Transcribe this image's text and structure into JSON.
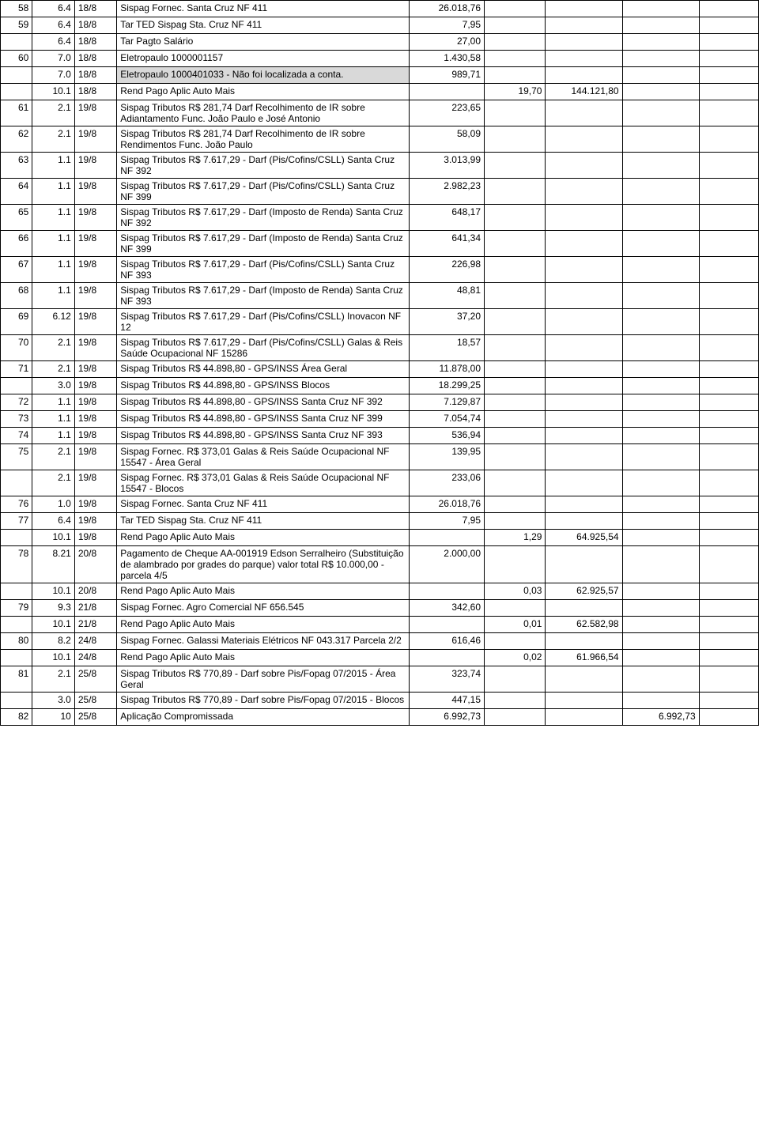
{
  "rows": [
    {
      "a": "58",
      "b": "6.4",
      "c": "18/8",
      "d": "Sispag Fornec. Santa Cruz NF 411",
      "e": "26.018,76",
      "f": "",
      "g": "",
      "h": "",
      "i": ""
    },
    {
      "a": "59",
      "b": "6.4",
      "c": "18/8",
      "d": "Tar TED Sispag Sta. Cruz NF 411",
      "e": "7,95",
      "f": "",
      "g": "",
      "h": "",
      "i": ""
    },
    {
      "a": "",
      "b": "6.4",
      "c": "18/8",
      "d": "Tar Pagto Salário",
      "e": "27,00",
      "f": "",
      "g": "",
      "h": "",
      "i": ""
    },
    {
      "a": "60",
      "b": "7.0",
      "c": "18/8",
      "d": "Eletropaulo 1000001157",
      "e": "1.430,58",
      "f": "",
      "g": "",
      "h": "",
      "i": ""
    },
    {
      "a": "",
      "b": "7.0",
      "c": "18/8",
      "d": "Eletropaulo 1000401033 - Não foi localizada a conta.",
      "e": "989,71",
      "f": "",
      "g": "",
      "h": "",
      "i": "",
      "highlight": true
    },
    {
      "a": "",
      "b": "10.1",
      "c": "18/8",
      "d": "Rend Pago Aplic Auto Mais",
      "e": "",
      "f": "19,70",
      "g": "144.121,80",
      "h": "",
      "i": ""
    },
    {
      "a": "61",
      "b": "2.1",
      "c": "19/8",
      "d": "Sispag Tributos R$ 281,74 Darf Recolhimento de IR sobre Adiantamento Func. João Paulo e José Antonio",
      "e": "223,65",
      "f": "",
      "g": "",
      "h": "",
      "i": ""
    },
    {
      "a": "62",
      "b": "2.1",
      "c": "19/8",
      "d": "Sispag Tributos R$ 281,74 Darf Recolhimento de IR sobre Rendimentos Func. João Paulo",
      "e": "58,09",
      "f": "",
      "g": "",
      "h": "",
      "i": ""
    },
    {
      "a": "63",
      "b": "1.1",
      "c": "19/8",
      "d": "Sispag Tributos R$ 7.617,29 - Darf (Pis/Cofins/CSLL) Santa Cruz NF 392",
      "e": "3.013,99",
      "f": "",
      "g": "",
      "h": "",
      "i": ""
    },
    {
      "a": "64",
      "b": "1.1",
      "c": "19/8",
      "d": "Sispag Tributos R$ 7.617,29 - Darf (Pis/Cofins/CSLL) Santa Cruz NF 399",
      "e": "2.982,23",
      "f": "",
      "g": "",
      "h": "",
      "i": ""
    },
    {
      "a": "65",
      "b": "1.1",
      "c": "19/8",
      "d": "Sispag Tributos R$ 7.617,29 - Darf (Imposto de Renda) Santa Cruz NF 392",
      "e": "648,17",
      "f": "",
      "g": "",
      "h": "",
      "i": ""
    },
    {
      "a": "66",
      "b": "1.1",
      "c": "19/8",
      "d": "Sispag Tributos R$ 7.617,29 - Darf (Imposto de Renda) Santa Cruz NF 399",
      "e": "641,34",
      "f": "",
      "g": "",
      "h": "",
      "i": ""
    },
    {
      "a": "67",
      "b": "1.1",
      "c": "19/8",
      "d": "Sispag Tributos R$ 7.617,29 - Darf (Pis/Cofins/CSLL) Santa Cruz NF 393",
      "e": "226,98",
      "f": "",
      "g": "",
      "h": "",
      "i": ""
    },
    {
      "a": "68",
      "b": "1.1",
      "c": "19/8",
      "d": "Sispag Tributos R$ 7.617,29 - Darf (Imposto de Renda) Santa Cruz NF 393",
      "e": "48,81",
      "f": "",
      "g": "",
      "h": "",
      "i": ""
    },
    {
      "a": "69",
      "b": "6.12",
      "c": "19/8",
      "d": "Sispag Tributos R$ 7.617,29 - Darf (Pis/Cofins/CSLL) Inovacon NF 12",
      "e": "37,20",
      "f": "",
      "g": "",
      "h": "",
      "i": ""
    },
    {
      "a": "70",
      "b": "2.1",
      "c": "19/8",
      "d": "Sispag Tributos R$ 7.617,29 - Darf (Pis/Cofins/CSLL) Galas & Reis Saúde Ocupacional NF 15286",
      "e": "18,57",
      "f": "",
      "g": "",
      "h": "",
      "i": ""
    },
    {
      "a": "71",
      "b": "2.1",
      "c": "19/8",
      "d": "Sispag Tributos R$ 44.898,80 - GPS/INSS Área Geral",
      "e": "11.878,00",
      "f": "",
      "g": "",
      "h": "",
      "i": ""
    },
    {
      "a": "",
      "b": "3.0",
      "c": "19/8",
      "d": "Sispag Tributos R$ 44.898,80 - GPS/INSS Blocos",
      "e": "18.299,25",
      "f": "",
      "g": "",
      "h": "",
      "i": ""
    },
    {
      "a": "72",
      "b": "1.1",
      "c": "19/8",
      "d": "Sispag Tributos R$ 44.898,80 - GPS/INSS Santa Cruz NF 392",
      "e": "7.129,87",
      "f": "",
      "g": "",
      "h": "",
      "i": ""
    },
    {
      "a": "73",
      "b": "1.1",
      "c": "19/8",
      "d": "Sispag Tributos R$ 44.898,80 - GPS/INSS Santa Cruz NF 399",
      "e": "7.054,74",
      "f": "",
      "g": "",
      "h": "",
      "i": ""
    },
    {
      "a": "74",
      "b": "1.1",
      "c": "19/8",
      "d": "Sispag Tributos R$ 44.898,80 - GPS/INSS Santa Cruz NF 393",
      "e": "536,94",
      "f": "",
      "g": "",
      "h": "",
      "i": ""
    },
    {
      "a": "75",
      "b": "2.1",
      "c": "19/8",
      "d": "Sispag Fornec. R$ 373,01 Galas & Reis Saúde Ocupacional NF 15547 - Área Geral",
      "e": "139,95",
      "f": "",
      "g": "",
      "h": "",
      "i": ""
    },
    {
      "a": "",
      "b": "2.1",
      "c": "19/8",
      "d": "Sispag Fornec. R$ 373,01 Galas & Reis Saúde Ocupacional NF 15547 - Blocos",
      "e": "233,06",
      "f": "",
      "g": "",
      "h": "",
      "i": ""
    },
    {
      "a": "76",
      "b": "1.0",
      "c": "19/8",
      "d": "Sispag Fornec. Santa Cruz NF 411",
      "e": "26.018,76",
      "f": "",
      "g": "",
      "h": "",
      "i": ""
    },
    {
      "a": "77",
      "b": "6.4",
      "c": "19/8",
      "d": "Tar TED Sispag Sta. Cruz NF 411",
      "e": "7,95",
      "f": "",
      "g": "",
      "h": "",
      "i": ""
    },
    {
      "a": "",
      "b": "10.1",
      "c": "19/8",
      "d": "Rend Pago Aplic Auto Mais",
      "e": "",
      "f": "1,29",
      "g": "64.925,54",
      "h": "",
      "i": ""
    },
    {
      "a": "78",
      "b": "8.21",
      "c": "20/8",
      "d": "Pagamento de Cheque AA-001919 Edson Serralheiro (Substituição de alambrado por grades do parque) valor total R$ 10.000,00 - parcela 4/5",
      "e": "2.000,00",
      "f": "",
      "g": "",
      "h": "",
      "i": ""
    },
    {
      "a": "",
      "b": "10.1",
      "c": "20/8",
      "d": "Rend Pago Aplic Auto Mais",
      "e": "",
      "f": "0,03",
      "g": "62.925,57",
      "h": "",
      "i": ""
    },
    {
      "a": "79",
      "b": "9.3",
      "c": "21/8",
      "d": "Sispag Fornec. Agro Comercial NF 656.545",
      "e": "342,60",
      "f": "",
      "g": "",
      "h": "",
      "i": ""
    },
    {
      "a": "",
      "b": "10.1",
      "c": "21/8",
      "d": "Rend Pago Aplic Auto Mais",
      "e": "",
      "f": "0,01",
      "g": "62.582,98",
      "h": "",
      "i": ""
    },
    {
      "a": "80",
      "b": "8.2",
      "c": "24/8",
      "d": "Sispag Fornec. Galassi Materiais Elétricos NF 043.317 Parcela 2/2",
      "e": "616,46",
      "f": "",
      "g": "",
      "h": "",
      "i": ""
    },
    {
      "a": "",
      "b": "10.1",
      "c": "24/8",
      "d": "Rend Pago Aplic Auto Mais",
      "e": "",
      "f": "0,02",
      "g": "61.966,54",
      "h": "",
      "i": ""
    },
    {
      "a": "81",
      "b": "2.1",
      "c": "25/8",
      "d": "Sispag Tributos R$ 770,89 - Darf sobre Pis/Fopag 07/2015 - Área Geral",
      "e": "323,74",
      "f": "",
      "g": "",
      "h": "",
      "i": ""
    },
    {
      "a": "",
      "b": "3.0",
      "c": "25/8",
      "d": "Sispag Tributos R$ 770,89 - Darf sobre Pis/Fopag 07/2015 - Blocos",
      "e": "447,15",
      "f": "",
      "g": "",
      "h": "",
      "i": ""
    },
    {
      "a": "82",
      "b": "10",
      "c": "25/8",
      "d": "Aplicação Compromissada",
      "e": "6.992,73",
      "f": "",
      "g": "",
      "h": "6.992,73",
      "i": ""
    }
  ]
}
